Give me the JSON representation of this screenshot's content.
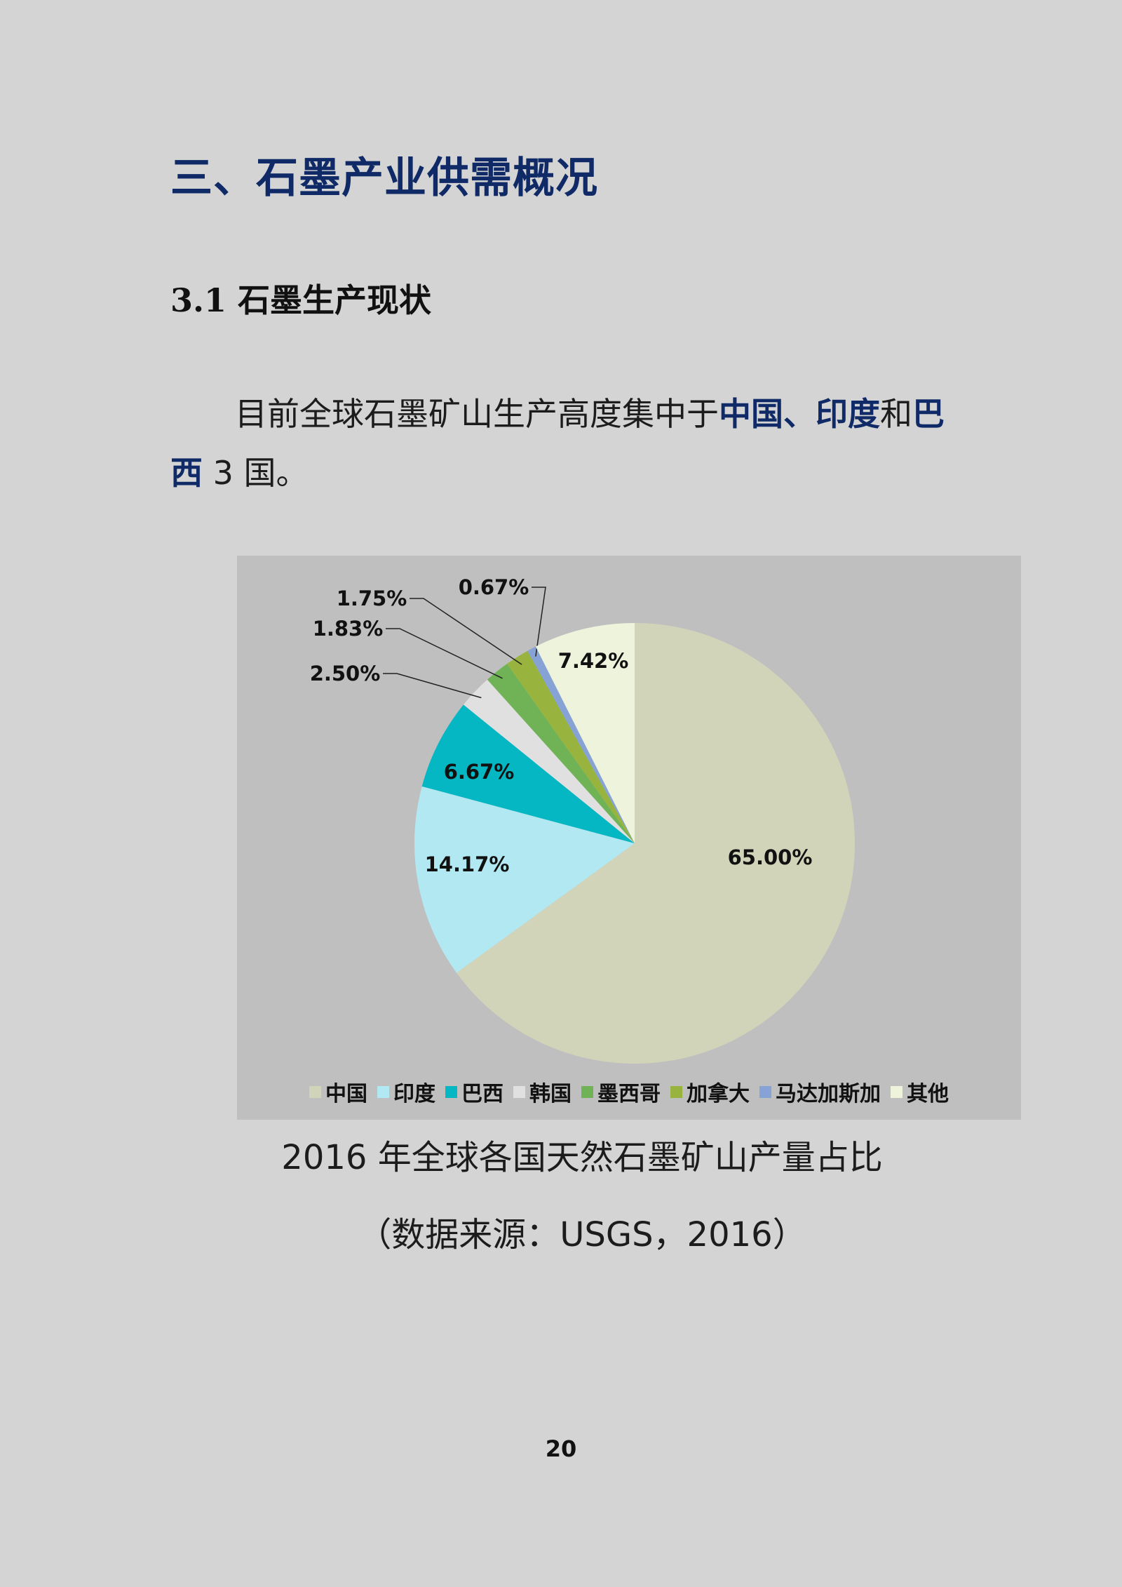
{
  "heading": "三、石墨产业供需概况",
  "subheading": {
    "number": "3.1",
    "text": "石墨生产现状"
  },
  "paragraph": {
    "part1": "目前全球石墨矿山生产高度集中于",
    "hl1": "中国",
    "sep": "、",
    "hl2": "印度",
    "part2": "和",
    "hl3": "巴西",
    "part3": " 3 国。"
  },
  "chart_data": {
    "type": "pie",
    "categories": [
      "中国",
      "印度",
      "巴西",
      "韩国",
      "墨西哥",
      "加拿大",
      "马达加斯加",
      "其他"
    ],
    "values": [
      65.0,
      14.17,
      6.67,
      2.5,
      1.83,
      1.75,
      0.67,
      7.42
    ],
    "labels": [
      "65.00%",
      "14.17%",
      "6.67%",
      "2.50%",
      "1.83%",
      "1.75%",
      "0.67%",
      "7.42%"
    ],
    "colors": [
      "#d2d4b9",
      "#b2e8f1",
      "#05b6c3",
      "#e0e0e0",
      "#6fb356",
      "#98b43f",
      "#87a3d6",
      "#eef3dc"
    ],
    "legend_position": "bottom"
  },
  "caption": "2016 年全球各国天然石墨矿山产量占比",
  "source": "（数据来源：USGS，2016）",
  "page_number": "20"
}
